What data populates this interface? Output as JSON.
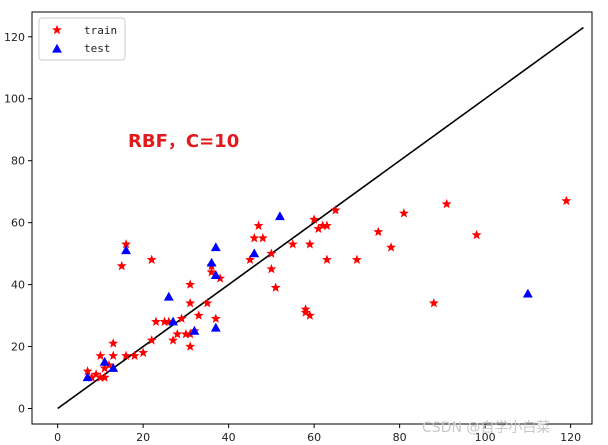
{
  "chart_data": {
    "type": "scatter",
    "title": "",
    "xlabel": "",
    "ylabel": "",
    "xlim": [
      -6,
      125
    ],
    "ylim": [
      -5,
      128
    ],
    "xticks": [
      0,
      20,
      40,
      60,
      80,
      100,
      120
    ],
    "yticks": [
      0,
      20,
      40,
      60,
      80,
      100,
      120
    ],
    "grid": false,
    "legend": "top-left",
    "annotation": "RBF，C=10",
    "watermark": "CSDN @自学小白菜",
    "series": [
      {
        "name": "train",
        "marker": "star",
        "color": "#ff0000",
        "points": [
          [
            7,
            12
          ],
          [
            8,
            10
          ],
          [
            9,
            11
          ],
          [
            10,
            10
          ],
          [
            11,
            10
          ],
          [
            11,
            13
          ],
          [
            10,
            17
          ],
          [
            12,
            14
          ],
          [
            13,
            17
          ],
          [
            13,
            21
          ],
          [
            15,
            46
          ],
          [
            16,
            53
          ],
          [
            16,
            17
          ],
          [
            18,
            17
          ],
          [
            20,
            18
          ],
          [
            22,
            48
          ],
          [
            22,
            22
          ],
          [
            23,
            28
          ],
          [
            25,
            28
          ],
          [
            26,
            28
          ],
          [
            27,
            22
          ],
          [
            28,
            24
          ],
          [
            29,
            29
          ],
          [
            30,
            24
          ],
          [
            31,
            20
          ],
          [
            31,
            24
          ],
          [
            31,
            40
          ],
          [
            31,
            34
          ],
          [
            32,
            25
          ],
          [
            33,
            30
          ],
          [
            35,
            34
          ],
          [
            36,
            46
          ],
          [
            36,
            44
          ],
          [
            37,
            29
          ],
          [
            38,
            42
          ],
          [
            45,
            48
          ],
          [
            46,
            55
          ],
          [
            47,
            59
          ],
          [
            48,
            55
          ],
          [
            50,
            50
          ],
          [
            50,
            45
          ],
          [
            51,
            39
          ],
          [
            55,
            53
          ],
          [
            58,
            32
          ],
          [
            58,
            31
          ],
          [
            59,
            30
          ],
          [
            59,
            53
          ],
          [
            60,
            61
          ],
          [
            61,
            58
          ],
          [
            62,
            59
          ],
          [
            63,
            59
          ],
          [
            63,
            48
          ],
          [
            65,
            64
          ],
          [
            70,
            48
          ],
          [
            75,
            57
          ],
          [
            78,
            52
          ],
          [
            81,
            63
          ],
          [
            88,
            34
          ],
          [
            91,
            66
          ],
          [
            98,
            56
          ],
          [
            119,
            67
          ]
        ]
      },
      {
        "name": "test",
        "marker": "triangle",
        "color": "#0000ff",
        "points": [
          [
            7,
            10
          ],
          [
            11,
            15
          ],
          [
            13,
            13
          ],
          [
            16,
            51
          ],
          [
            26,
            36
          ],
          [
            27,
            28
          ],
          [
            32,
            25
          ],
          [
            36,
            47
          ],
          [
            37,
            52
          ],
          [
            37,
            26
          ],
          [
            37,
            43
          ],
          [
            46,
            50
          ],
          [
            52,
            62
          ],
          [
            110,
            37
          ]
        ]
      }
    ],
    "lines": [
      {
        "name": "",
        "color": "#000000",
        "from": [
          0,
          0
        ],
        "to": [
          123,
          123
        ]
      }
    ]
  }
}
